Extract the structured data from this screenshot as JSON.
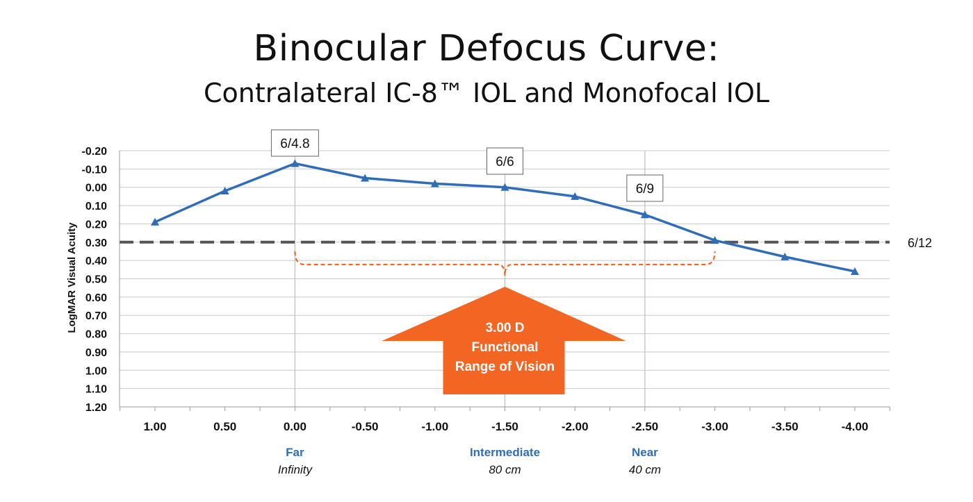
{
  "header": {
    "title": "Binocular Defocus Curve:",
    "subtitle": "Contralateral IC-8™ IOL and Monofocal IOL"
  },
  "chart_data": {
    "type": "line",
    "ylabel": "LogMAR Visual Acuity",
    "x": [
      1.0,
      0.5,
      0.0,
      -0.5,
      -1.0,
      -1.5,
      -2.0,
      -2.5,
      -3.0,
      -3.5,
      -4.0
    ],
    "x_tick_labels": [
      "1.00",
      "0.50",
      "0.00",
      "-0.50",
      "-1.00",
      "-1.50",
      "-2.00",
      "-2.50",
      "-3.00",
      "-3.50",
      "-4.00"
    ],
    "series": [
      {
        "values": [
          0.19,
          0.02,
          -0.13,
          -0.05,
          -0.02,
          0.0,
          0.05,
          0.15,
          0.29,
          0.38,
          0.46
        ],
        "color": "#2f6db8",
        "marker": "triangle"
      }
    ],
    "ylim": [
      -0.2,
      1.2
    ],
    "y_inverted": true,
    "y_ticks": [
      -0.2,
      -0.1,
      0.0,
      0.1,
      0.2,
      0.3,
      0.4,
      0.5,
      0.6,
      0.7,
      0.8,
      0.9,
      1.0,
      1.1,
      1.2
    ],
    "y_tick_labels": [
      "-0.20",
      "-0.10",
      "0.00",
      "0.10",
      "0.20",
      "0.30",
      "0.40",
      "0.50",
      "0.60",
      "0.70",
      "0.80",
      "0.90",
      "1.00",
      "1.10",
      "1.20"
    ],
    "grid": true,
    "reference_line": {
      "y": 0.3,
      "label": "6/12",
      "color": "#555555",
      "style": "dashed"
    },
    "vertical_markers": [
      0.0,
      -1.5,
      -2.5
    ],
    "point_annotations": [
      {
        "x": 0.0,
        "label": "6/4.8"
      },
      {
        "x": -1.5,
        "label": "6/6"
      },
      {
        "x": -2.5,
        "label": "6/9"
      }
    ],
    "range_bracket": {
      "from": 0.0,
      "to": -3.0,
      "color": "#f26522"
    },
    "range_arrow": {
      "lines": [
        "3.00 D",
        "Functional",
        "Range of Vision"
      ],
      "color": "#f26522"
    },
    "zones": [
      {
        "x": 0.0,
        "name": "Far",
        "sub": "Infinity"
      },
      {
        "x": -1.5,
        "name": "Intermediate",
        "sub": "80 cm"
      },
      {
        "x": -2.5,
        "name": "Near",
        "sub": "40 cm"
      }
    ]
  }
}
